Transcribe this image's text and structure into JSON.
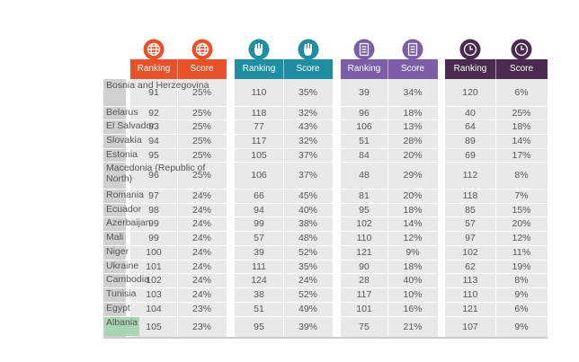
{
  "groups": [
    {
      "id": "g1",
      "color": "#e8522b",
      "icon": "globe-icon",
      "ranking_label": "Ranking",
      "score_label": "Score"
    },
    {
      "id": "g2",
      "color": "#1f8ea0",
      "icon": "raised-fist-icon",
      "ranking_label": "Ranking",
      "score_label": "Score"
    },
    {
      "id": "g3",
      "color": "#7b5ea7",
      "icon": "document-icon",
      "ranking_label": "Ranking",
      "score_label": "Score"
    },
    {
      "id": "g4",
      "color": "#4a2a4e",
      "icon": "clock-icon",
      "ranking_label": "Ranking",
      "score_label": "Score"
    }
  ],
  "rows": [
    {
      "country": "Bosnia and Herzegovina",
      "highlight": false,
      "values": [
        "91",
        "25%",
        "110",
        "35%",
        "39",
        "34%",
        "120",
        "6%"
      ]
    },
    {
      "country": "Belarus",
      "highlight": false,
      "values": [
        "92",
        "25%",
        "118",
        "32%",
        "96",
        "18%",
        "40",
        "25%"
      ]
    },
    {
      "country": "El Salvador",
      "highlight": false,
      "values": [
        "93",
        "25%",
        "77",
        "43%",
        "106",
        "13%",
        "64",
        "18%"
      ]
    },
    {
      "country": "Slovakia",
      "highlight": false,
      "values": [
        "94",
        "25%",
        "117",
        "32%",
        "51",
        "28%",
        "89",
        "14%"
      ]
    },
    {
      "country": "Estonia",
      "highlight": false,
      "values": [
        "95",
        "25%",
        "105",
        "37%",
        "84",
        "20%",
        "69",
        "17%"
      ]
    },
    {
      "country": "Macedonia (Republic of North)",
      "highlight": false,
      "values": [
        "96",
        "25%",
        "106",
        "37%",
        "48",
        "29%",
        "112",
        "8%"
      ]
    },
    {
      "country": "Romania",
      "highlight": false,
      "values": [
        "97",
        "24%",
        "66",
        "45%",
        "81",
        "20%",
        "118",
        "7%"
      ]
    },
    {
      "country": "Ecuador",
      "highlight": false,
      "values": [
        "98",
        "24%",
        "94",
        "40%",
        "95",
        "18%",
        "85",
        "15%"
      ]
    },
    {
      "country": "Azerbaijan",
      "highlight": false,
      "values": [
        "99",
        "24%",
        "99",
        "38%",
        "102",
        "14%",
        "57",
        "20%"
      ]
    },
    {
      "country": "Mali",
      "highlight": false,
      "values": [
        "99",
        "24%",
        "57",
        "48%",
        "110",
        "12%",
        "97",
        "12%"
      ]
    },
    {
      "country": "Niger",
      "highlight": false,
      "values": [
        "100",
        "24%",
        "39",
        "52%",
        "121",
        "9%",
        "102",
        "11%"
      ]
    },
    {
      "country": "Ukraine",
      "highlight": false,
      "values": [
        "101",
        "24%",
        "111",
        "35%",
        "90",
        "18%",
        "62",
        "19%"
      ]
    },
    {
      "country": "Cambodia",
      "highlight": false,
      "values": [
        "102",
        "24%",
        "124",
        "24%",
        "28",
        "40%",
        "113",
        "8%"
      ]
    },
    {
      "country": "Tunisia",
      "highlight": false,
      "values": [
        "103",
        "24%",
        "38",
        "52%",
        "117",
        "10%",
        "110",
        "9%"
      ]
    },
    {
      "country": "Egypt",
      "highlight": false,
      "values": [
        "104",
        "23%",
        "51",
        "49%",
        "101",
        "16%",
        "121",
        "6%"
      ]
    },
    {
      "country": "Albania",
      "highlight": true,
      "values": [
        "105",
        "23%",
        "95",
        "39%",
        "75",
        "21%",
        "107",
        "9%"
      ]
    }
  ]
}
